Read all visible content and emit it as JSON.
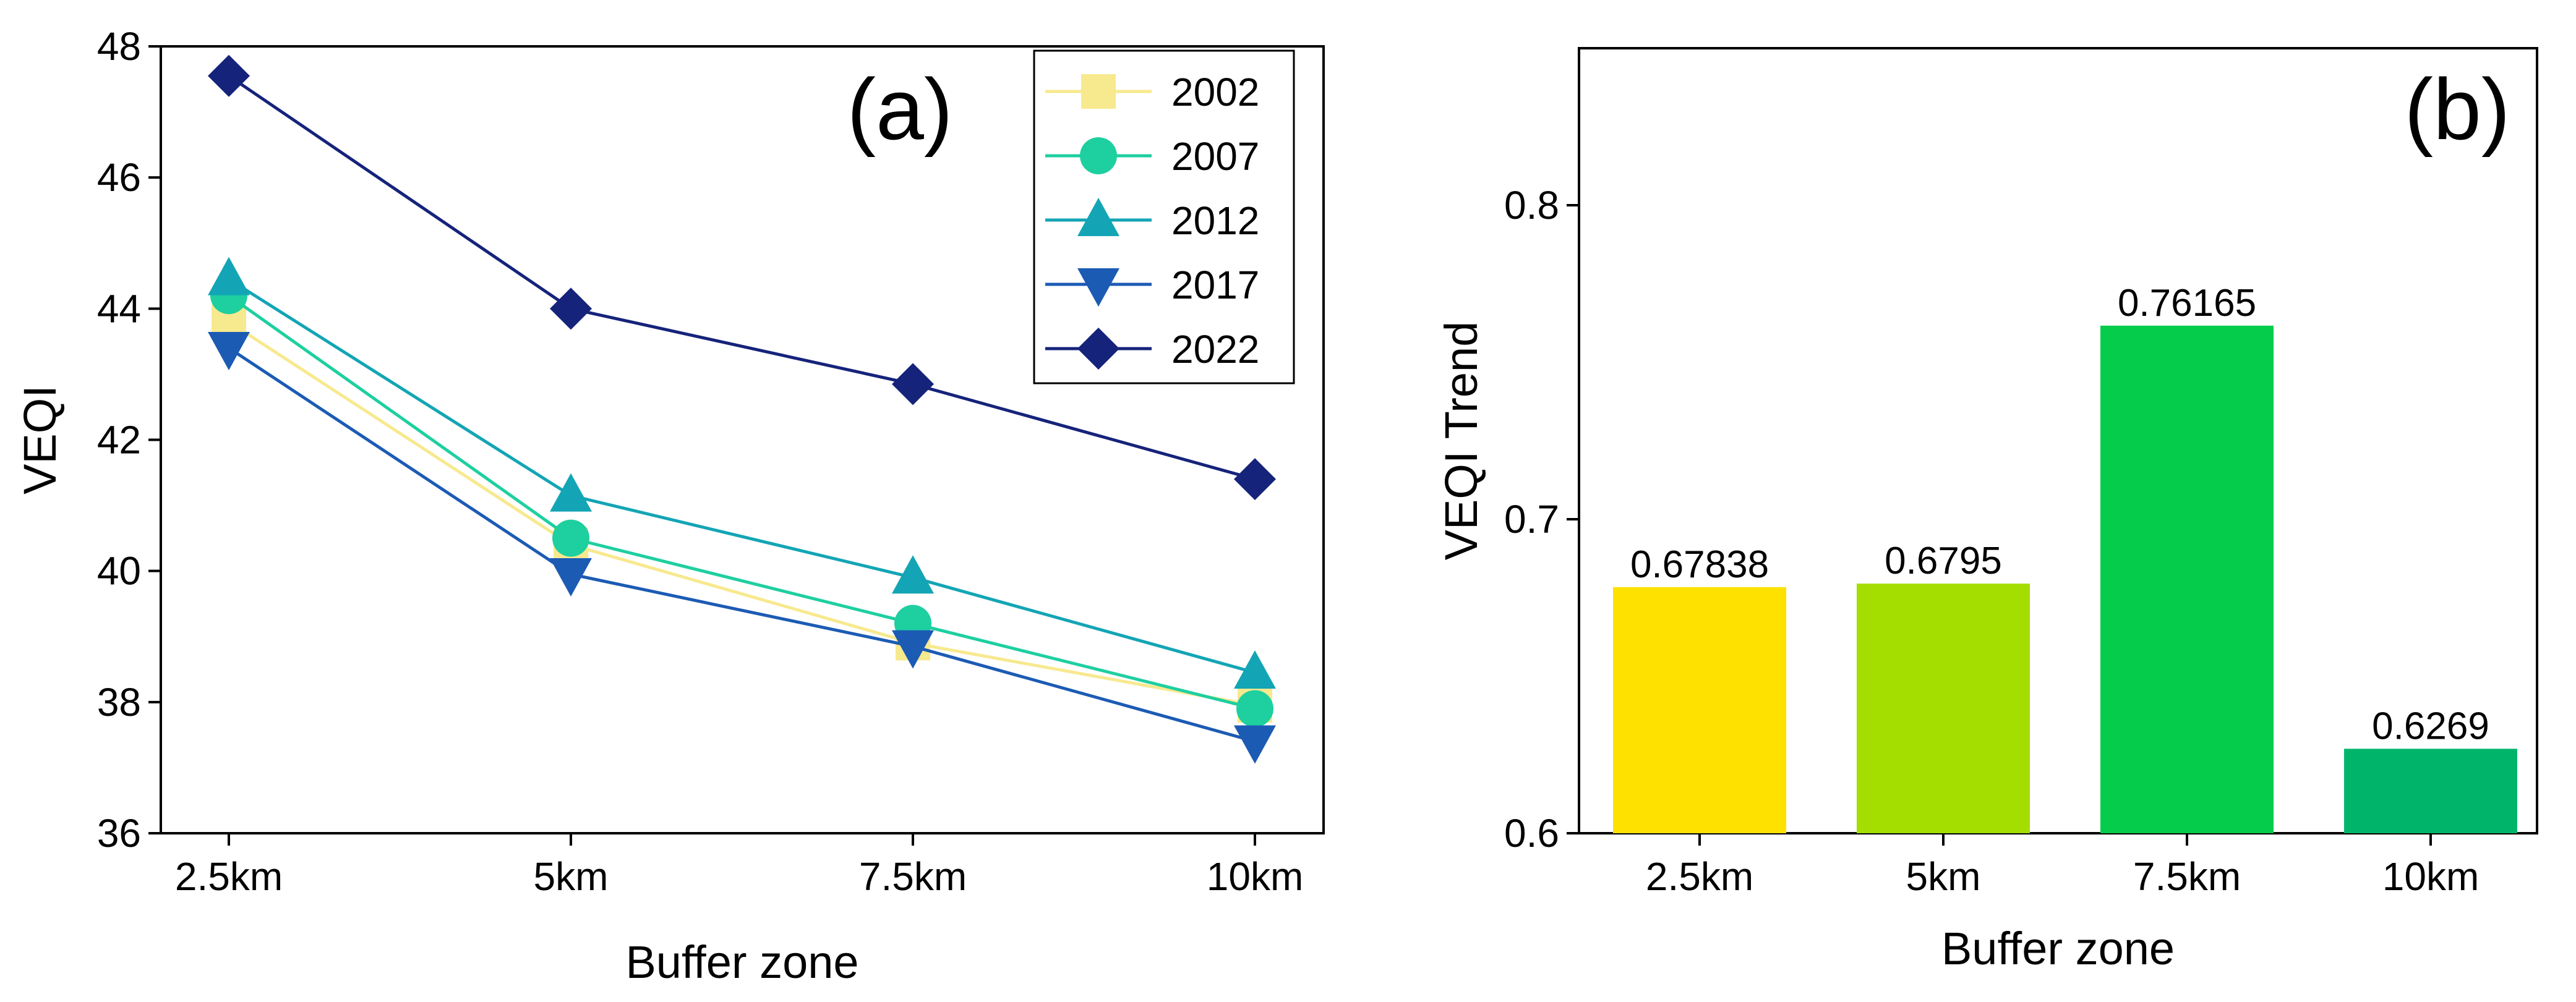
{
  "chart_data": [
    {
      "type": "line",
      "panel_label": "(a)",
      "categories": [
        "2.5km",
        "5km",
        "7.5km",
        "10km"
      ],
      "xlabel": "Buffer zone",
      "ylabel": "VEQI",
      "ylim": [
        36,
        48
      ],
      "yticks": [
        36,
        38,
        40,
        42,
        44,
        46,
        48
      ],
      "grid": false,
      "legend_position": "top-right",
      "series": [
        {
          "name": "2002",
          "values": [
            43.8,
            40.4,
            38.9,
            37.95
          ],
          "color": "#f7e98e",
          "marker": "square"
        },
        {
          "name": "2007",
          "values": [
            44.2,
            40.5,
            39.2,
            37.9
          ],
          "color": "#1ecfa0",
          "marker": "circle"
        },
        {
          "name": "2012",
          "values": [
            44.45,
            41.15,
            39.9,
            38.45
          ],
          "color": "#13a5b5",
          "marker": "triangle-up"
        },
        {
          "name": "2017",
          "values": [
            43.4,
            39.95,
            38.85,
            37.4
          ],
          "color": "#1c5bb4",
          "marker": "triangle-down"
        },
        {
          "name": "2022",
          "values": [
            47.55,
            44.0,
            42.85,
            41.4
          ],
          "color": "#15237a",
          "marker": "diamond"
        }
      ]
    },
    {
      "type": "bar",
      "panel_label": "(b)",
      "categories": [
        "2.5km",
        "5km",
        "7.5km",
        "10km"
      ],
      "values": [
        0.67838,
        0.6795,
        0.76165,
        0.6269
      ],
      "value_labels": [
        "0.67838",
        "0.6795",
        "0.76165",
        "0.6269"
      ],
      "colors": [
        "#ffe100",
        "#a4dd00",
        "#05cc4b",
        "#00b56a"
      ],
      "xlabel": "Buffer zone",
      "ylabel": "VEQI Trend",
      "ylim": [
        0.6,
        0.85
      ],
      "yticks": [
        "0.6",
        "0.7",
        "0.8"
      ],
      "grid": false
    }
  ]
}
